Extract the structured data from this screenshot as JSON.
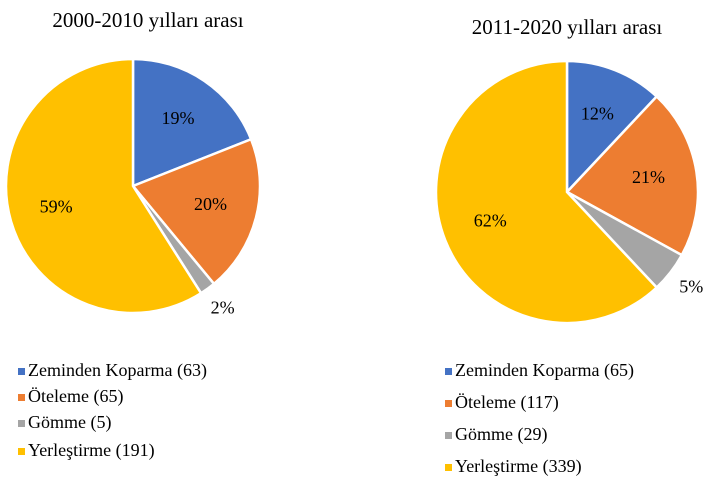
{
  "chart_data": [
    {
      "type": "pie",
      "title": "2000-2010 yılları arası",
      "categories": [
        "Zeminden Koparma (63)",
        "Öteleme (65)",
        "Gömme (5)",
        "Yerleştirme (191)"
      ],
      "values": [
        19,
        20,
        2,
        59
      ],
      "value_labels": [
        "19%",
        "20%",
        "2%",
        "59%"
      ],
      "colors": [
        "#4472c4",
        "#ed7d31",
        "#a5a5a5",
        "#ffc000"
      ]
    },
    {
      "type": "pie",
      "title": "2011-2020 yılları arası",
      "categories": [
        "Zeminden Koparma (65)",
        "Öteleme (117)",
        "Gömme (29)",
        "Yerleştirme (339)"
      ],
      "values": [
        12,
        21,
        5,
        62
      ],
      "value_labels": [
        "12%",
        "21%",
        "5%",
        "62%"
      ],
      "colors": [
        "#4472c4",
        "#ed7d31",
        "#a5a5a5",
        "#ffc000"
      ]
    }
  ]
}
